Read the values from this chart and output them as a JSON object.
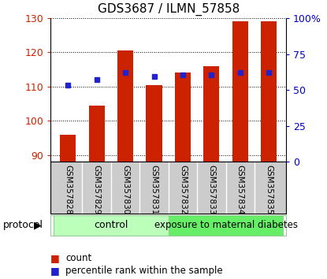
{
  "title": "GDS3687 / ILMN_57858",
  "samples": [
    "GSM357828",
    "GSM357829",
    "GSM357830",
    "GSM357831",
    "GSM357832",
    "GSM357833",
    "GSM357834",
    "GSM357835"
  ],
  "red_values": [
    96,
    104.5,
    120.5,
    110.5,
    114,
    116,
    129,
    129
  ],
  "blue_values": [
    110.5,
    112,
    114,
    113,
    113.5,
    113.5,
    114,
    114
  ],
  "ylim_left": [
    88,
    130
  ],
  "ylim_right": [
    0,
    100
  ],
  "left_ticks": [
    90,
    100,
    110,
    120,
    130
  ],
  "right_ticks": [
    0,
    25,
    50,
    75,
    100
  ],
  "right_tick_labels": [
    "0",
    "25",
    "50",
    "75",
    "100%"
  ],
  "bar_bottom": 88,
  "bar_color": "#cc2200",
  "dot_color": "#2222cc",
  "group0_label": "control",
  "group0_color": "#bbffbb",
  "group1_label": "exposure to maternal diabetes",
  "group1_color": "#66ee66",
  "protocol_label": "protocol",
  "legend_count_label": "count",
  "legend_pct_label": "percentile rank within the sample",
  "legend_count_color": "#cc2200",
  "legend_pct_color": "#2222cc",
  "bg_color": "#ffffff",
  "tick_color_left": "#cc2200",
  "tick_color_right": "#0000cc",
  "label_bg": "#cccccc",
  "divider_color": "#ffffff"
}
